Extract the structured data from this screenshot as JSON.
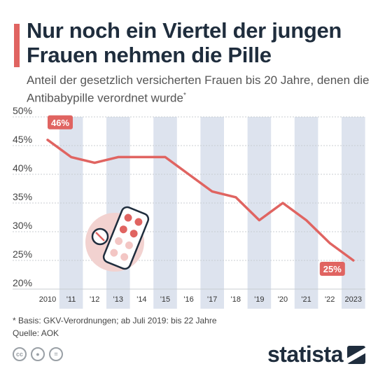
{
  "header": {
    "title": "Nur noch ein Viertel der jungen Frauen nehmen die Pille",
    "subtitle": "Anteil der gesetzlich versicherten Frauen bis 20 Jahre, denen die Antibabypille verordnet wurde",
    "subtitle_mark": "*"
  },
  "footer": {
    "footnote": "* Basis: GKV-Verordnungen; ab Juli 2019: bis 22 Jahre",
    "source": "Quelle: AOK",
    "brand": "statista",
    "license_icons": [
      "cc-icon",
      "person-icon",
      "equals-icon"
    ]
  },
  "colors": {
    "line": "#e06461",
    "band": "#dde3ee",
    "label_bg": "#e06461",
    "title": "#1f2d3d"
  },
  "chart_data": {
    "type": "line",
    "title": "Nur noch ein Viertel der jungen Frauen nehmen die Pille",
    "categories": [
      "2010",
      "'11",
      "'12",
      "'13",
      "'14",
      "'15",
      "'16",
      "'17",
      "'18",
      "'19",
      "'20",
      "'21",
      "'22",
      "2023"
    ],
    "values": [
      46,
      43,
      42,
      43,
      43,
      43,
      40,
      37,
      36,
      32,
      35,
      32,
      28,
      25
    ],
    "y_ticks": [
      "50%",
      "45%",
      "40%",
      "35%",
      "30%",
      "25%",
      "20%"
    ],
    "ylim": [
      20,
      50
    ],
    "annotations": [
      {
        "label": "46%",
        "index": 0
      },
      {
        "label": "25%",
        "index": 13
      }
    ],
    "grid": true
  }
}
